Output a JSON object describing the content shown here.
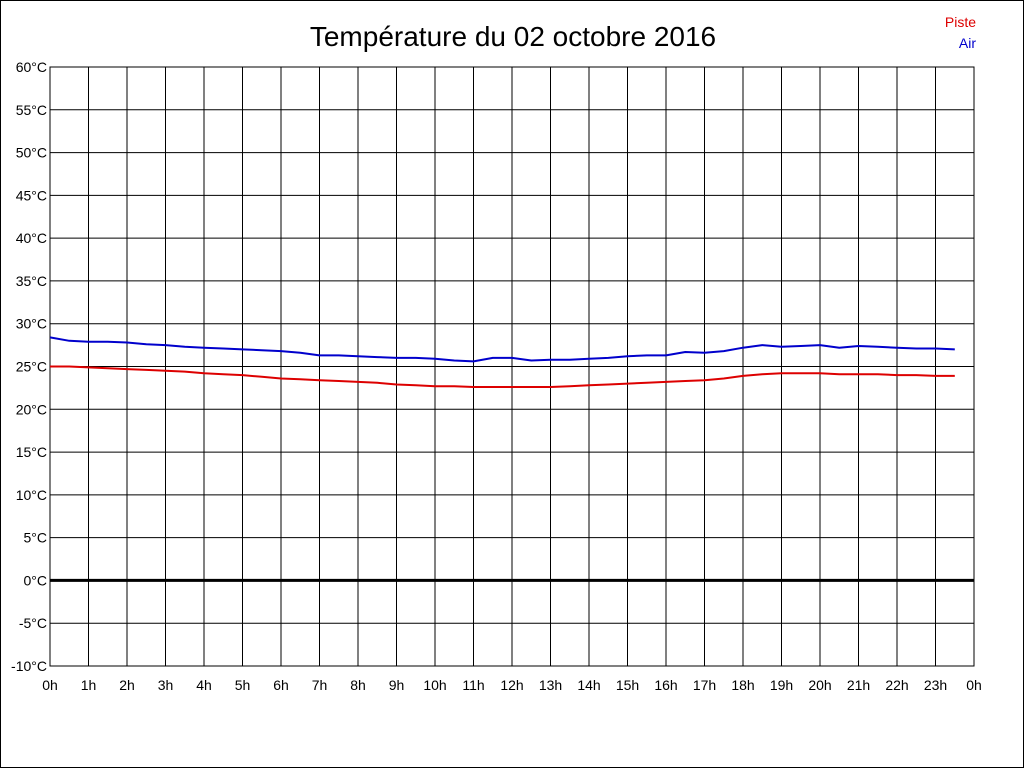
{
  "chart_data": {
    "type": "line",
    "title": "Température du 02 octobre 2016",
    "xlabel": "",
    "ylabel": "",
    "xlim": [
      0,
      24
    ],
    "ylim": [
      -10,
      60
    ],
    "grid": true,
    "legend_position": "top-right",
    "y_ticks": [
      "60°C",
      "55°C",
      "50°C",
      "45°C",
      "40°C",
      "35°C",
      "30°C",
      "25°C",
      "20°C",
      "15°C",
      "10°C",
      "5°C",
      "0°C",
      "-5°C",
      "-10°C"
    ],
    "x_ticks": [
      "0h",
      "1h",
      "2h",
      "3h",
      "4h",
      "5h",
      "6h",
      "7h",
      "8h",
      "9h",
      "10h",
      "11h",
      "12h",
      "13h",
      "14h",
      "15h",
      "16h",
      "17h",
      "18h",
      "19h",
      "20h",
      "21h",
      "22h",
      "23h",
      "0h"
    ],
    "series": [
      {
        "name": "Piste",
        "color": "#dd0000",
        "x": [
          0,
          0.5,
          1,
          1.5,
          2,
          2.5,
          3,
          3.5,
          4,
          4.5,
          5,
          5.5,
          6,
          6.5,
          7,
          7.5,
          8,
          8.5,
          9,
          9.5,
          10,
          10.5,
          11,
          11.5,
          12,
          12.5,
          13,
          13.5,
          14,
          14.5,
          15,
          15.5,
          16,
          16.5,
          17,
          17.5,
          18,
          18.5,
          19,
          19.5,
          20,
          20.5,
          21,
          21.5,
          22,
          22.5,
          23,
          23.5
        ],
        "y": [
          25.0,
          25.0,
          24.9,
          24.8,
          24.7,
          24.6,
          24.5,
          24.4,
          24.2,
          24.1,
          24.0,
          23.8,
          23.6,
          23.5,
          23.4,
          23.3,
          23.2,
          23.1,
          22.9,
          22.8,
          22.7,
          22.7,
          22.6,
          22.6,
          22.6,
          22.6,
          22.6,
          22.7,
          22.8,
          22.9,
          23.0,
          23.1,
          23.2,
          23.3,
          23.4,
          23.6,
          23.9,
          24.1,
          24.2,
          24.2,
          24.2,
          24.1,
          24.1,
          24.1,
          24.0,
          24.0,
          23.9,
          23.9
        ]
      },
      {
        "name": "Air",
        "color": "#0000cc",
        "x": [
          0,
          0.5,
          1,
          1.5,
          2,
          2.5,
          3,
          3.5,
          4,
          4.5,
          5,
          5.5,
          6,
          6.5,
          7,
          7.5,
          8,
          8.5,
          9,
          9.5,
          10,
          10.5,
          11,
          11.5,
          12,
          12.5,
          13,
          13.5,
          14,
          14.5,
          15,
          15.5,
          16,
          16.5,
          17,
          17.5,
          18,
          18.5,
          19,
          19.5,
          20,
          20.5,
          21,
          21.5,
          22,
          22.5,
          23,
          23.5
        ],
        "y": [
          28.4,
          28.0,
          27.9,
          27.9,
          27.8,
          27.6,
          27.5,
          27.3,
          27.2,
          27.1,
          27.0,
          26.9,
          26.8,
          26.6,
          26.3,
          26.3,
          26.2,
          26.1,
          26.0,
          26.0,
          25.9,
          25.7,
          25.6,
          26.0,
          26.0,
          25.7,
          25.8,
          25.8,
          25.9,
          26.0,
          26.2,
          26.3,
          26.3,
          26.7,
          26.6,
          26.8,
          27.2,
          27.5,
          27.3,
          27.4,
          27.5,
          27.2,
          27.4,
          27.3,
          27.2,
          27.1,
          27.1,
          27.0
        ]
      }
    ]
  }
}
